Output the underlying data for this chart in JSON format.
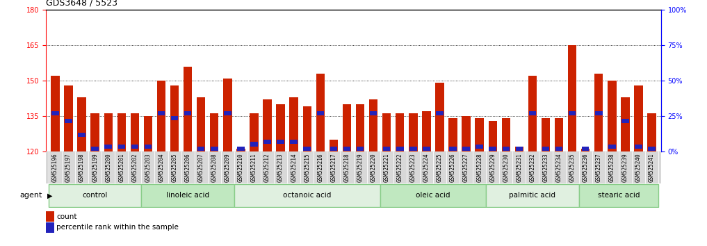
{
  "title": "GDS3648 / 5523",
  "samples": [
    "GSM525196",
    "GSM525197",
    "GSM525198",
    "GSM525199",
    "GSM525200",
    "GSM525201",
    "GSM525202",
    "GSM525203",
    "GSM525204",
    "GSM525205",
    "GSM525206",
    "GSM525207",
    "GSM525208",
    "GSM525209",
    "GSM525210",
    "GSM525211",
    "GSM525212",
    "GSM525213",
    "GSM525214",
    "GSM525215",
    "GSM525216",
    "GSM525217",
    "GSM525218",
    "GSM525219",
    "GSM525220",
    "GSM525221",
    "GSM525222",
    "GSM525223",
    "GSM525224",
    "GSM525225",
    "GSM525226",
    "GSM525227",
    "GSM525228",
    "GSM525229",
    "GSM525230",
    "GSM525231",
    "GSM525232",
    "GSM525233",
    "GSM525234",
    "GSM525235",
    "GSM525236",
    "GSM525237",
    "GSM525238",
    "GSM525239",
    "GSM525240",
    "GSM525241"
  ],
  "red_values": [
    152,
    148,
    143,
    136,
    136,
    136,
    136,
    135,
    150,
    148,
    156,
    143,
    136,
    151,
    121,
    136,
    142,
    140,
    143,
    139,
    153,
    125,
    140,
    140,
    142,
    136,
    136,
    136,
    137,
    149,
    134,
    135,
    134,
    133,
    134,
    122,
    152,
    134,
    134,
    165,
    121,
    153,
    150,
    143,
    148,
    136
  ],
  "blue_values": [
    136,
    133,
    127,
    121,
    122,
    122,
    122,
    122,
    136,
    134,
    136,
    121,
    121,
    136,
    121,
    123,
    124,
    124,
    124,
    121,
    136,
    121,
    121,
    121,
    136,
    121,
    121,
    121,
    121,
    136,
    121,
    121,
    122,
    121,
    121,
    121,
    136,
    121,
    121,
    136,
    121,
    136,
    122,
    133,
    122,
    121
  ],
  "groups": [
    {
      "label": "control",
      "start": 0,
      "end": 6
    },
    {
      "label": "linoleic acid",
      "start": 7,
      "end": 13
    },
    {
      "label": "octanoic acid",
      "start": 14,
      "end": 24
    },
    {
      "label": "oleic acid",
      "start": 25,
      "end": 32
    },
    {
      "label": "palmitic acid",
      "start": 33,
      "end": 39
    },
    {
      "label": "stearic acid",
      "start": 40,
      "end": 45
    }
  ],
  "ymin": 120,
  "ymax": 180,
  "yticks": [
    120,
    135,
    150,
    165,
    180
  ],
  "y2min": 0,
  "y2max": 100,
  "y2ticks": [
    0,
    25,
    50,
    75,
    100
  ],
  "y2labels": [
    "0%",
    "25%",
    "50%",
    "75%",
    "100%"
  ],
  "bar_color": "#cc2200",
  "dot_color": "#2222bb",
  "group_colors": [
    "#e0f0e0",
    "#c0e8c0",
    "#e0f0e0",
    "#c0e8c0",
    "#e0f0e0",
    "#c0e8c0"
  ],
  "group_border_color": "#88cc88",
  "tick_bg_color": "#d8d8d8",
  "agent_label": "agent",
  "legend_count": "count",
  "legend_percentile": "percentile rank within the sample"
}
